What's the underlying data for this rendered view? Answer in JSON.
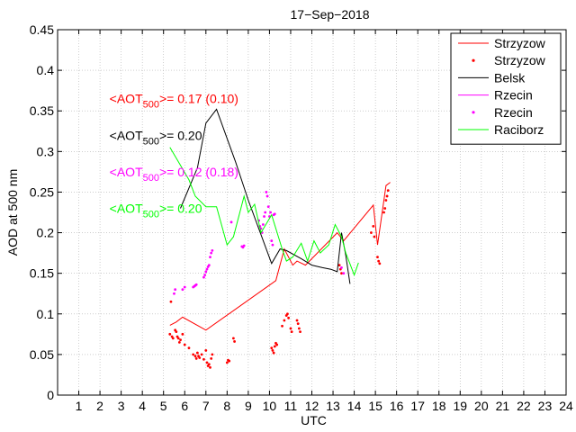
{
  "chart_data": {
    "type": "line",
    "title": "17−Sep−2018",
    "xlabel": "UTC",
    "ylabel": "AOD at 500 nm",
    "xlim": [
      0,
      24
    ],
    "ylim": [
      0,
      0.45
    ],
    "x_ticks": [
      1,
      2,
      3,
      4,
      5,
      6,
      7,
      8,
      9,
      10,
      11,
      12,
      13,
      14,
      15,
      16,
      17,
      18,
      19,
      20,
      21,
      22,
      23,
      24
    ],
    "y_ticks": [
      0,
      0.05,
      0.1,
      0.15,
      0.2,
      0.25,
      0.3,
      0.35,
      0.4,
      0.45
    ],
    "y_tick_labels": [
      "0",
      "0.05",
      "0.1",
      "0.15",
      "0.2",
      "0.25",
      "0.3",
      "0.35",
      "0.4",
      "0.45"
    ],
    "grid": true,
    "legend_position": "top-right",
    "annotations": [
      {
        "prefix": "<AOT",
        "sub": "500",
        "suffix": ">= 0.17 (0.10)",
        "color": "#ff0000"
      },
      {
        "prefix": "<AOT",
        "sub": "500",
        "suffix": ">= 0.20",
        "color": "#000000"
      },
      {
        "prefix": "<AOT",
        "sub": "500",
        "suffix": ">= 0.12 (0.18)",
        "color": "#ff00ff"
      },
      {
        "prefix": "<AOT",
        "sub": "500",
        "suffix": ">= 0.20",
        "color": "#00ff00"
      }
    ],
    "series": [
      {
        "name": "Strzyzow",
        "kind": "line",
        "color": "#ff0000",
        "x": [
          5.3,
          5.6,
          5.9,
          7.0,
          10.3,
          10.7,
          11.1,
          11.3,
          11.7,
          13.2,
          13.5,
          14.9,
          15.1,
          15.5,
          15.7
        ],
        "y": [
          0.086,
          0.09,
          0.096,
          0.08,
          0.141,
          0.18,
          0.16,
          0.165,
          0.16,
          0.2,
          0.19,
          0.234,
          0.185,
          0.258,
          0.262
        ]
      },
      {
        "name": "Strzyzow",
        "kind": "scatter",
        "color": "#ff0000",
        "x": [
          5.3,
          5.35,
          5.4,
          5.45,
          5.55,
          5.6,
          5.65,
          5.7,
          5.75,
          5.8,
          5.9,
          6.0,
          6.2,
          6.4,
          6.5,
          6.55,
          6.6,
          6.65,
          6.7,
          6.8,
          6.9,
          7.0,
          7.05,
          7.1,
          7.15,
          7.2,
          7.25,
          7.3,
          8.0,
          8.05,
          8.1,
          8.3,
          8.35,
          10.1,
          10.15,
          10.2,
          10.25,
          10.3,
          10.35,
          10.6,
          10.7,
          10.8,
          10.85,
          10.9,
          11.0,
          11.05,
          11.3,
          11.35,
          11.4,
          11.45,
          13.3,
          13.35,
          13.4,
          14.8,
          14.9,
          14.95,
          15.1,
          15.15,
          15.2,
          15.4,
          15.45,
          15.5,
          15.55,
          15.6
        ],
        "y": [
          0.075,
          0.115,
          0.072,
          0.07,
          0.08,
          0.078,
          0.072,
          0.07,
          0.065,
          0.068,
          0.075,
          0.062,
          0.058,
          0.05,
          0.048,
          0.045,
          0.052,
          0.048,
          0.046,
          0.05,
          0.044,
          0.055,
          0.04,
          0.036,
          0.038,
          0.034,
          0.045,
          0.05,
          0.04,
          0.043,
          0.042,
          0.07,
          0.066,
          0.058,
          0.055,
          0.052,
          0.06,
          0.064,
          0.062,
          0.085,
          0.092,
          0.098,
          0.1,
          0.095,
          0.082,
          0.078,
          0.092,
          0.088,
          0.082,
          0.078,
          0.16,
          0.155,
          0.15,
          0.2,
          0.208,
          0.195,
          0.17,
          0.165,
          0.162,
          0.225,
          0.23,
          0.24,
          0.245,
          0.252
        ]
      },
      {
        "name": "Belsk",
        "kind": "line",
        "color": "#000000",
        "x": [
          5.8,
          6.6,
          7.0,
          7.5,
          8.4,
          9.0,
          10.1,
          10.5,
          10.8,
          11.5,
          12.0,
          12.5,
          12.9,
          13.2,
          13.4,
          13.6,
          13.8
        ],
        "y": [
          0.23,
          0.28,
          0.335,
          0.352,
          0.287,
          0.24,
          0.162,
          0.18,
          0.178,
          0.168,
          0.16,
          0.157,
          0.155,
          0.152,
          0.2,
          0.172,
          0.137
        ]
      },
      {
        "name": "Rzecin",
        "kind": "line",
        "color": "#ff00ff",
        "x": [],
        "y": []
      },
      {
        "name": "Rzecin",
        "kind": "scatter",
        "color": "#ff00ff",
        "x": [
          5.5,
          5.55,
          5.9,
          6.0,
          6.4,
          6.45,
          6.5,
          6.55,
          6.9,
          6.95,
          7.0,
          7.05,
          7.1,
          7.15,
          7.2,
          7.25,
          7.3,
          8.2,
          8.7,
          8.75,
          8.8,
          9.5,
          9.55,
          9.6,
          9.65,
          9.7,
          9.75,
          9.8,
          9.85,
          9.9,
          9.95,
          10.0,
          10.05,
          10.1,
          10.15,
          10.2,
          10.25,
          13.4,
          13.5
        ],
        "y": [
          0.125,
          0.13,
          0.13,
          0.133,
          0.133,
          0.134,
          0.135,
          0.136,
          0.145,
          0.148,
          0.152,
          0.155,
          0.158,
          0.16,
          0.17,
          0.175,
          0.178,
          0.213,
          0.183,
          0.182,
          0.184,
          0.215,
          0.208,
          0.205,
          0.2,
          0.21,
          0.22,
          0.225,
          0.25,
          0.245,
          0.232,
          0.22,
          0.225,
          0.19,
          0.185,
          0.222,
          0.223,
          0.157,
          0.15
        ]
      },
      {
        "name": "Raciborz",
        "kind": "line",
        "color": "#00ff00",
        "x": [
          5.3,
          5.6,
          6.2,
          6.5,
          7.0,
          7.5,
          8.0,
          8.3,
          8.8,
          9.0,
          9.3,
          9.6,
          10.1,
          10.6,
          10.8,
          11.1,
          11.5,
          11.8,
          12.1,
          12.4,
          12.8,
          13.1,
          13.4,
          13.6,
          14.0,
          14.2
        ],
        "y": [
          0.305,
          0.292,
          0.265,
          0.245,
          0.232,
          0.232,
          0.185,
          0.195,
          0.245,
          0.225,
          0.235,
          0.2,
          0.222,
          0.18,
          0.165,
          0.17,
          0.187,
          0.165,
          0.19,
          0.175,
          0.185,
          0.21,
          0.195,
          0.175,
          0.148,
          0.163
        ]
      }
    ]
  }
}
